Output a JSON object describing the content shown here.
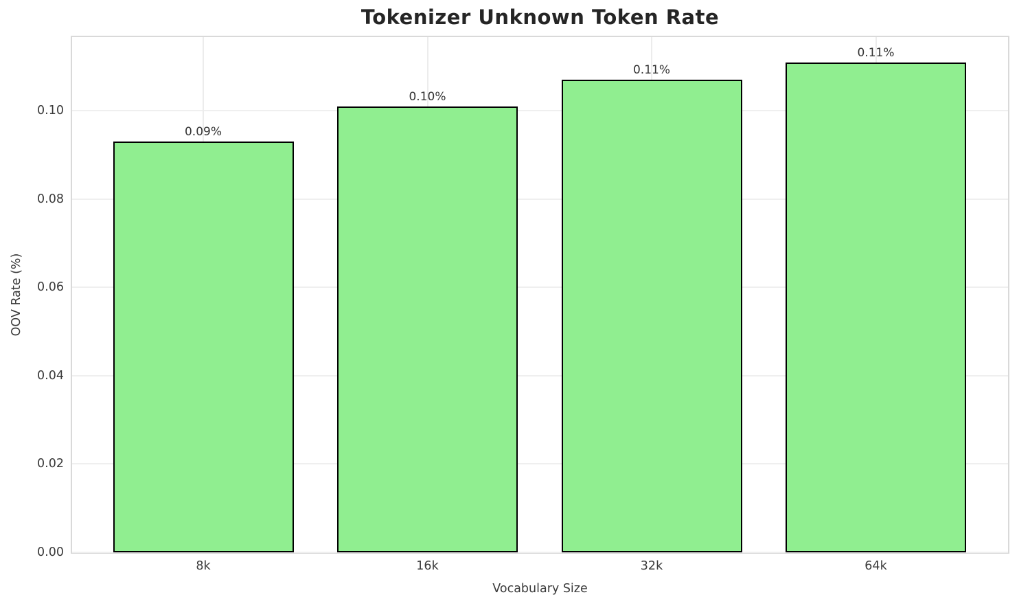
{
  "chart_data": {
    "type": "bar",
    "title": "Tokenizer Unknown Token Rate",
    "xlabel": "Vocabulary Size",
    "ylabel": "OOV Rate (%)",
    "categories": [
      "8k",
      "16k",
      "32k",
      "64k"
    ],
    "values": [
      0.093,
      0.101,
      0.107,
      0.111
    ],
    "bar_labels": [
      "0.09%",
      "0.10%",
      "0.11%",
      "0.11%"
    ],
    "yticks": [
      "0.00",
      "0.02",
      "0.04",
      "0.06",
      "0.08",
      "0.10"
    ],
    "ylim": [
      0,
      0.1167
    ],
    "grid": true,
    "legend": "none",
    "colors": {
      "bar_fill": "#90EE90",
      "bar_edge": "#000000",
      "grid_h": "#efefef",
      "grid_v": "#ececec",
      "spine": "#d9d9d9",
      "text": "#3a3a3a",
      "title_text": "#252525"
    }
  }
}
